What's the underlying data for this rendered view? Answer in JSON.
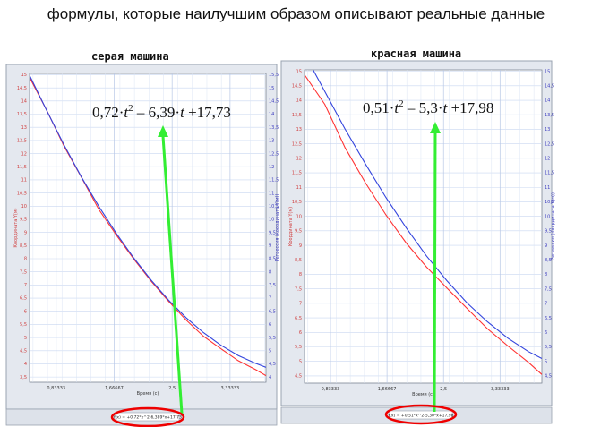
{
  "title": "формулы, которые наилучшим образом описывают реальные данные",
  "charts": [
    {
      "subtitle": "серая машина",
      "formula_html": "0,72·t² – 6,39·t +17,73",
      "formula_parts": {
        "a": "0,72·",
        "t": "t",
        "sup": "2",
        "rest": " – 6,39·",
        "t2": "t",
        "tail": " +17,73"
      },
      "equation_box": "f(x) = +0,72*x^2-6,389*x+17,73",
      "ylabel_left": "Координата Y(м)",
      "ylabel_right": "Регрессия (координата Y(м))",
      "xlabel": "Время (с)"
    },
    {
      "subtitle": "красная машина",
      "formula_parts": {
        "a": "0,51·",
        "t": "t",
        "sup": "2",
        "rest": " – 5,3·",
        "t2": "t",
        "tail": " +17,98"
      },
      "equation_box": "f(x) = +0,51*x^2-5,30*x+17,98",
      "ylabel_left": "Координата Y(м)",
      "ylabel_right": "Регрессия (координата Y(м))",
      "xlabel": "Время (с)"
    }
  ],
  "chart_data": [
    {
      "type": "line",
      "title": "серая машина",
      "xlabel": "Время (с)",
      "ylabel": "Координата Y(м)",
      "ylabel_right": "Регрессия (координата Y(м))",
      "xlim": [
        0.45,
        3.85
      ],
      "ylim": [
        3.3,
        15.05
      ],
      "x_ticks": [
        "0,83333",
        "1,66667",
        "2,5",
        "3,33333"
      ],
      "x_tick_values": [
        0.8333,
        1.6667,
        2.5,
        3.3333
      ],
      "y_ticks": [
        3.5,
        4,
        4.5,
        5,
        5.5,
        6,
        6.5,
        7,
        7.5,
        8,
        8.5,
        9,
        9.5,
        10,
        10.5,
        11,
        11.5,
        12,
        12.5,
        13,
        13.5,
        14,
        14.5,
        15
      ],
      "y_tick_labels_left": [
        "3,5",
        "4",
        "4,5",
        "5",
        "5,5",
        "6",
        "6,5",
        "7",
        "7,5",
        "8",
        "8,5",
        "9",
        "9,5",
        "10",
        "10,5",
        "11",
        "11,5",
        "12",
        "12,5",
        "13",
        "13,5",
        "14",
        "14,5",
        "15"
      ],
      "y_tick_labels_right": [
        "4",
        "4,5",
        "5",
        "5,5",
        "6",
        "6,5",
        "7",
        "7,5",
        "8",
        "8,5",
        "9",
        "9,5",
        "10",
        "10,5",
        "11",
        "11,5",
        "12",
        "12,5",
        "13",
        "13,5",
        "14",
        "14,5",
        "15",
        "15,5"
      ],
      "grid": true,
      "series": [
        {
          "color": "#ff3333",
          "x": [
            0.45,
            0.7,
            0.95,
            1.2,
            1.45,
            1.7,
            1.95,
            2.2,
            2.45,
            2.7,
            2.95,
            3.2,
            3.45,
            3.7,
            3.85
          ],
          "y": [
            14.9,
            13.63,
            12.26,
            11.08,
            9.86,
            8.89,
            7.98,
            7.14,
            6.38,
            5.67,
            5.05,
            4.58,
            4.12,
            3.78,
            3.55
          ]
        },
        {
          "color": "#3344dd",
          "x": [
            0.45,
            0.7,
            0.95,
            1.2,
            1.45,
            1.7,
            1.95,
            2.2,
            2.45,
            2.7,
            2.95,
            3.2,
            3.45,
            3.7,
            3.85
          ],
          "y": [
            14.98,
            13.62,
            12.31,
            11.09,
            9.98,
            8.95,
            8.02,
            7.18,
            6.42,
            5.76,
            5.19,
            4.71,
            4.32,
            4.02,
            3.87
          ]
        }
      ]
    },
    {
      "type": "line",
      "title": "красная машина",
      "xlabel": "Время (с)",
      "ylabel": "Координата Y(м)",
      "ylabel_right": "Регрессия (координата Y(м))",
      "xlim": [
        0.45,
        3.95
      ],
      "ylim": [
        4.25,
        15.05
      ],
      "x_ticks": [
        "0,83333",
        "1,66667",
        "2,5",
        "3,33333"
      ],
      "x_tick_values": [
        0.8333,
        1.6667,
        2.5,
        3.3333
      ],
      "y_ticks": [
        4.5,
        5,
        5.5,
        6,
        6.5,
        7,
        7.5,
        8,
        8.5,
        9,
        9.5,
        10,
        10.5,
        11,
        11.5,
        12,
        12.5,
        13,
        13.5,
        14,
        14.5,
        15
      ],
      "y_tick_labels_left": [
        "4,5",
        "5",
        "5,5",
        "6",
        "6,5",
        "7",
        "7,5",
        "8",
        "8,5",
        "9",
        "9,5",
        "10",
        "10,5",
        "11",
        "11,5",
        "12",
        "12,5",
        "13",
        "13,5",
        "14",
        "14,5",
        "15"
      ],
      "y_tick_labels_right": [
        "4,5",
        "5",
        "5,5",
        "6",
        "6,5",
        "7",
        "7,5",
        "8",
        "8,5",
        "9",
        "9,5",
        "10",
        "10,5",
        "11",
        "11,5",
        "12",
        "12,5",
        "13",
        "13,5",
        "14",
        "14,5",
        "15"
      ],
      "grid": true,
      "series": [
        {
          "color": "#ff3333",
          "x": [
            0.45,
            0.75,
            1.05,
            1.35,
            1.65,
            1.95,
            2.25,
            2.55,
            2.85,
            3.15,
            3.45,
            3.75,
            3.95
          ],
          "y": [
            14.88,
            13.86,
            12.36,
            11.15,
            10.05,
            9.08,
            8.25,
            7.53,
            6.82,
            6.12,
            5.53,
            4.97,
            4.55
          ]
        },
        {
          "color": "#3344dd",
          "x": [
            0.45,
            0.75,
            1.05,
            1.35,
            1.65,
            1.95,
            2.25,
            2.55,
            2.85,
            3.15,
            3.45,
            3.75,
            3.95
          ],
          "y": [
            15.6,
            14.3,
            13.0,
            11.8,
            10.65,
            9.6,
            8.63,
            7.78,
            7.01,
            6.36,
            5.8,
            5.34,
            5.1
          ]
        }
      ]
    }
  ]
}
